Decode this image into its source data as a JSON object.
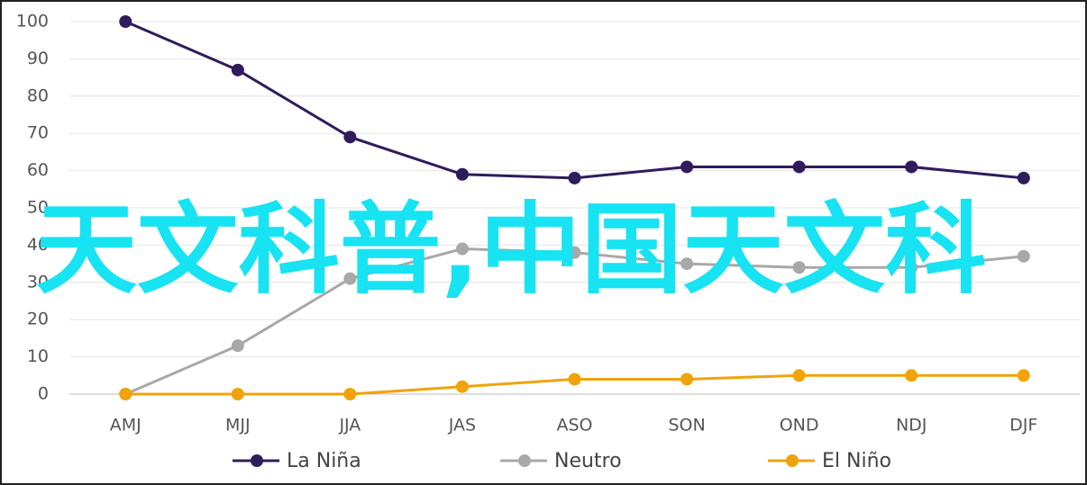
{
  "chart_data": {
    "type": "line",
    "annotation": "天文科普,中国天文科",
    "categories": [
      "AMJ",
      "MJJ",
      "JJA",
      "JAS",
      "ASO",
      "SON",
      "OND",
      "NDJ",
      "DJF"
    ],
    "series": [
      {
        "name": "La Niña",
        "color": "#2e1c5c",
        "values": [
          100,
          87,
          69,
          59,
          58,
          61,
          61,
          61,
          58
        ]
      },
      {
        "name": "Neutro",
        "color": "#a8a8a8",
        "values": [
          0,
          13,
          31,
          39,
          38,
          35,
          34,
          34,
          37
        ]
      },
      {
        "name": "El Niño",
        "color": "#f0a30a",
        "values": [
          0,
          0,
          0,
          2,
          4,
          4,
          5,
          5,
          5
        ]
      }
    ],
    "ylim": [
      0,
      100
    ],
    "yticks": [
      0,
      10,
      20,
      30,
      40,
      50,
      60,
      70,
      80,
      90,
      100
    ],
    "grid": true,
    "legend": "bottom"
  }
}
